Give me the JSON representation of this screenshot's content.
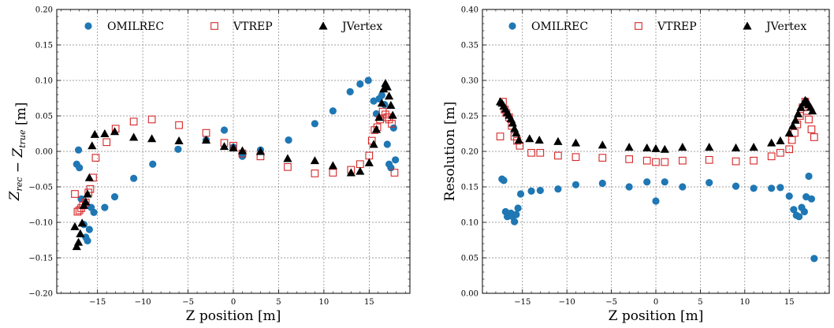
{
  "chart_data": [
    {
      "type": "scatter",
      "xlabel": "Z position  [m]",
      "ylabel_parts": {
        "main1": "Z",
        "sub1": "rec",
        "op": " − ",
        "main2": "Z",
        "sub2": "true",
        "unit": "  [m]"
      },
      "xlim": [
        -19.5,
        19.5
      ],
      "ylim": [
        -0.2,
        0.2
      ],
      "xticks": [
        -15,
        -10,
        -5,
        0,
        5,
        10,
        15
      ],
      "xtick_labels": [
        "−15",
        "−10",
        "−5",
        "0",
        "5",
        "10",
        "15"
      ],
      "yticks": [
        -0.2,
        -0.15,
        -0.1,
        -0.05,
        0.0,
        0.05,
        0.1,
        0.15,
        0.2
      ],
      "ytick_labels": [
        "−0.20",
        "−0.15",
        "−0.10",
        "−0.05",
        "0.00",
        "0.05",
        "0.10",
        "0.15",
        "0.20"
      ],
      "grid": true,
      "legend": "top",
      "series": [
        {
          "name": "OMILREC",
          "marker": "circle",
          "color": "#1f77b4",
          "x": [
            -17.3,
            -17.1,
            -17.0,
            -16.8,
            -16.5,
            -16.3,
            -16.1,
            -15.9,
            -15.7,
            -15.4,
            -14.2,
            -13.1,
            -11.0,
            -8.9,
            -6.1,
            -3.0,
            -1.0,
            0.0,
            1.0,
            3.0,
            6.1,
            9.0,
            11.0,
            12.9,
            14.0,
            14.9,
            15.5,
            15.8,
            16.1,
            16.4,
            16.7,
            17.0,
            17.2,
            17.4,
            17.7,
            17.9
          ],
          "y": [
            -0.018,
            0.002,
            -0.023,
            -0.067,
            -0.103,
            -0.121,
            -0.126,
            -0.11,
            -0.079,
            -0.086,
            -0.079,
            -0.064,
            -0.038,
            -0.018,
            0.003,
            0.016,
            0.03,
            0.006,
            -0.007,
            0.002,
            0.016,
            0.039,
            0.057,
            0.084,
            0.095,
            0.1,
            0.071,
            0.053,
            0.074,
            0.079,
            0.066,
            0.01,
            -0.018,
            -0.023,
            0.033,
            -0.012
          ]
        },
        {
          "name": "VTREP",
          "marker": "square",
          "color": "#d62728",
          "x": [
            -17.5,
            -17.2,
            -17.0,
            -16.8,
            -16.6,
            -16.3,
            -16.0,
            -15.8,
            -15.5,
            -15.2,
            -14.0,
            -13.0,
            -11.0,
            -9.0,
            -6.0,
            -3.0,
            -1.0,
            0.0,
            1.0,
            3.0,
            6.0,
            9.0,
            11.0,
            13.0,
            14.0,
            15.0,
            15.3,
            15.6,
            15.9,
            16.2,
            16.5,
            16.8,
            17.0,
            17.2,
            17.5,
            17.8
          ],
          "y": [
            -0.06,
            -0.085,
            -0.083,
            -0.08,
            -0.076,
            -0.072,
            -0.058,
            -0.053,
            -0.037,
            -0.009,
            0.013,
            0.032,
            0.042,
            0.045,
            0.037,
            0.026,
            0.012,
            0.008,
            -0.003,
            -0.007,
            -0.022,
            -0.031,
            -0.03,
            -0.026,
            -0.018,
            -0.006,
            0.015,
            0.03,
            0.034,
            0.045,
            0.056,
            0.052,
            0.048,
            0.045,
            0.039,
            -0.03
          ]
        },
        {
          "name": "JVertex",
          "marker": "triangle",
          "color": "#000000",
          "x": [
            -17.5,
            -17.3,
            -17.1,
            -16.9,
            -16.7,
            -16.5,
            -16.3,
            -16.1,
            -15.9,
            -15.6,
            -15.3,
            -14.2,
            -13.1,
            -11.0,
            -9.0,
            -6.0,
            -3.0,
            -1.0,
            0.0,
            1.0,
            3.0,
            6.0,
            9.0,
            11.0,
            13.0,
            14.0,
            15.0,
            15.5,
            15.8,
            16.1,
            16.4,
            16.6,
            16.8,
            17.0,
            17.2,
            17.4,
            17.6
          ],
          "y": [
            -0.106,
            -0.134,
            -0.128,
            -0.116,
            -0.101,
            -0.076,
            -0.071,
            -0.06,
            -0.037,
            0.008,
            0.024,
            0.025,
            0.028,
            0.02,
            0.018,
            0.015,
            0.016,
            0.007,
            0.005,
            0.001,
            0.0,
            -0.01,
            -0.013,
            -0.02,
            -0.03,
            -0.028,
            -0.016,
            0.01,
            0.031,
            0.048,
            0.068,
            0.088,
            0.096,
            0.091,
            0.078,
            0.065,
            0.051
          ]
        }
      ]
    },
    {
      "type": "scatter",
      "xlabel": "Z position  [m]",
      "ylabel": "Resolution  [m]",
      "xlim": [
        -19.5,
        19.5
      ],
      "ylim": [
        0.0,
        0.4
      ],
      "xticks": [
        -15,
        -10,
        -5,
        0,
        5,
        10,
        15
      ],
      "xtick_labels": [
        "−15",
        "−10",
        "−5",
        "0",
        "5",
        "10",
        "15"
      ],
      "yticks": [
        0.0,
        0.05,
        0.1,
        0.15,
        0.2,
        0.25,
        0.3,
        0.35,
        0.4
      ],
      "ytick_labels": [
        "0.00",
        "0.05",
        "0.10",
        "0.15",
        "0.20",
        "0.25",
        "0.30",
        "0.35",
        "0.40"
      ],
      "grid": true,
      "legend": "top",
      "series": [
        {
          "name": "OMILREC",
          "marker": "circle",
          "color": "#1f77b4",
          "x": [
            -17.3,
            -17.1,
            -16.9,
            -16.7,
            -16.5,
            -16.3,
            -16.1,
            -15.9,
            -15.7,
            -15.5,
            -15.2,
            -14.0,
            -13.0,
            -11.0,
            -9.0,
            -6.0,
            -3.0,
            -1.0,
            0.0,
            1.0,
            3.0,
            6.0,
            9.0,
            11.0,
            13.0,
            14.0,
            15.0,
            15.5,
            15.8,
            16.1,
            16.4,
            16.7,
            16.9,
            17.2,
            17.5,
            17.8
          ],
          "y": [
            0.161,
            0.159,
            0.115,
            0.108,
            0.112,
            0.113,
            0.108,
            0.101,
            0.111,
            0.12,
            0.14,
            0.144,
            0.145,
            0.147,
            0.153,
            0.155,
            0.15,
            0.157,
            0.13,
            0.157,
            0.15,
            0.156,
            0.151,
            0.148,
            0.148,
            0.149,
            0.137,
            0.118,
            0.11,
            0.108,
            0.121,
            0.115,
            0.136,
            0.165,
            0.133,
            0.049
          ]
        },
        {
          "name": "VTREP",
          "marker": "square",
          "color": "#d62728",
          "x": [
            -17.5,
            -17.2,
            -17.0,
            -16.8,
            -16.5,
            -16.2,
            -15.9,
            -15.6,
            -15.3,
            -14.0,
            -13.0,
            -11.0,
            -9.0,
            -6.0,
            -3.0,
            -1.0,
            0.0,
            1.0,
            3.0,
            6.0,
            9.0,
            11.0,
            13.0,
            14.0,
            15.0,
            15.3,
            15.6,
            15.9,
            16.2,
            16.5,
            16.8,
            17.0,
            17.2,
            17.5,
            17.8
          ],
          "y": [
            0.221,
            0.27,
            0.259,
            0.254,
            0.248,
            0.236,
            0.221,
            0.215,
            0.208,
            0.198,
            0.198,
            0.194,
            0.192,
            0.191,
            0.189,
            0.187,
            0.185,
            0.185,
            0.187,
            0.188,
            0.186,
            0.187,
            0.193,
            0.198,
            0.203,
            0.216,
            0.226,
            0.238,
            0.25,
            0.262,
            0.27,
            0.257,
            0.245,
            0.231,
            0.22
          ]
        },
        {
          "name": "JVertex",
          "marker": "triangle",
          "color": "#000000",
          "x": [
            -17.5,
            -17.3,
            -17.1,
            -16.9,
            -16.7,
            -16.5,
            -16.3,
            -16.1,
            -15.9,
            -15.7,
            -15.4,
            -14.2,
            -13.1,
            -11.0,
            -9.0,
            -6.0,
            -3.0,
            -1.0,
            0.0,
            1.0,
            3.0,
            6.0,
            9.0,
            11.0,
            13.0,
            14.0,
            15.0,
            15.4,
            15.7,
            16.0,
            16.3,
            16.6,
            16.8,
            17.0,
            17.2,
            17.4,
            17.6
          ],
          "y": [
            0.27,
            0.268,
            0.264,
            0.26,
            0.255,
            0.251,
            0.246,
            0.24,
            0.232,
            0.226,
            0.216,
            0.218,
            0.216,
            0.214,
            0.212,
            0.209,
            0.206,
            0.205,
            0.204,
            0.203,
            0.206,
            0.206,
            0.205,
            0.206,
            0.212,
            0.215,
            0.226,
            0.236,
            0.244,
            0.253,
            0.262,
            0.268,
            0.272,
            0.27,
            0.266,
            0.262,
            0.257
          ]
        }
      ]
    }
  ]
}
